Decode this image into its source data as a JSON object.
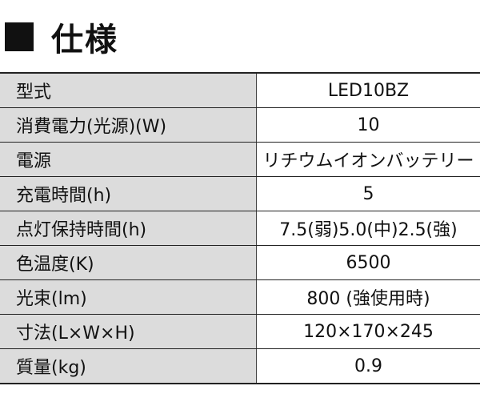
{
  "heading": {
    "icon": "black-square-icon",
    "title": "仕様"
  },
  "spec_table": {
    "rows": [
      {
        "label": "型式",
        "value": "LED10BZ"
      },
      {
        "label": "消費電力(光源)(W)",
        "value": "10"
      },
      {
        "label": "電源",
        "value": "リチウムイオンバッテリー"
      },
      {
        "label": "充電時間(h)",
        "value": "5"
      },
      {
        "label": "点灯保持時間(h)",
        "value": "7.5(弱)5.0(中)2.5(強)"
      },
      {
        "label": "色温度(K)",
        "value": "6500"
      },
      {
        "label": "光束(lm)",
        "value": "800 (強使用時)"
      },
      {
        "label": "寸法(L×W×H)",
        "value": "120×170×245"
      },
      {
        "label": "質量(kg)",
        "value": "0.9"
      }
    ]
  },
  "colors": {
    "label_background": "#dcdcdc",
    "value_background": "#ffffff",
    "border": "#222222",
    "text": "#111111"
  }
}
